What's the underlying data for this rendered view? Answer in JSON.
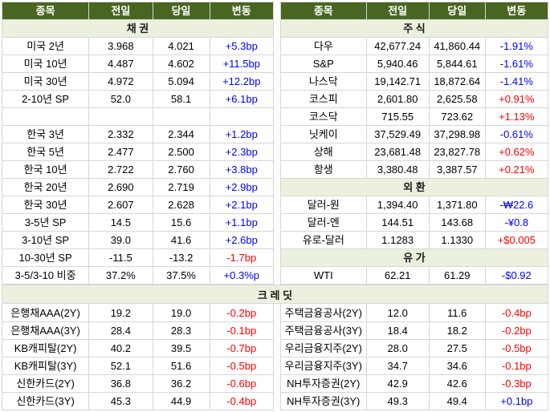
{
  "colors": {
    "header_bg": "#486621",
    "header_text": "#ffffff",
    "section_bg": "#ebf1de",
    "section_text": "#1a1a1a",
    "red": "#ff0000",
    "blue": "#0000ff",
    "grid": "#d6d6d6",
    "text": "#000000"
  },
  "chart_data": {
    "type": "table",
    "columns": [
      "종목",
      "전일",
      "당일",
      "변동"
    ],
    "left_rows": [
      {
        "t": "section",
        "label": "채 권"
      },
      {
        "t": "data",
        "name": "미국 2년",
        "prev": "3.968",
        "cur": "4.021",
        "chg": "+5.3bp",
        "c": "blue"
      },
      {
        "t": "data",
        "name": "미국 10년",
        "prev": "4.487",
        "cur": "4.602",
        "chg": "+11.5bp",
        "c": "blue"
      },
      {
        "t": "data",
        "name": "미국 30년",
        "prev": "4.972",
        "cur": "5.094",
        "chg": "+12.2bp",
        "c": "blue"
      },
      {
        "t": "data",
        "name": "2-10년 SP",
        "prev": "52.0",
        "cur": "58.1",
        "chg": "+6.1bp",
        "c": "blue"
      },
      {
        "t": "blank"
      },
      {
        "t": "data",
        "name": "한국 3년",
        "prev": "2.332",
        "cur": "2.344",
        "chg": "+1.2bp",
        "c": "blue"
      },
      {
        "t": "data",
        "name": "한국 5년",
        "prev": "2.477",
        "cur": "2.500",
        "chg": "+2.3bp",
        "c": "blue"
      },
      {
        "t": "data",
        "name": "한국 10년",
        "prev": "2.722",
        "cur": "2.760",
        "chg": "+3.8bp",
        "c": "blue"
      },
      {
        "t": "data",
        "name": "한국 20년",
        "prev": "2.690",
        "cur": "2.719",
        "chg": "+2.9bp",
        "c": "blue"
      },
      {
        "t": "data",
        "name": "한국 30년",
        "prev": "2.607",
        "cur": "2.628",
        "chg": "+2.1bp",
        "c": "blue"
      },
      {
        "t": "data",
        "name": "3-5년 SP",
        "prev": "14.5",
        "cur": "15.6",
        "chg": "+1.1bp",
        "c": "blue"
      },
      {
        "t": "data",
        "name": "3-10년 SP",
        "prev": "39.0",
        "cur": "41.6",
        "chg": "+2.6bp",
        "c": "blue"
      },
      {
        "t": "data",
        "name": "10-30년 SP",
        "prev": "-11.5",
        "cur": "-13.2",
        "chg": "-1.7bp",
        "c": "red"
      },
      {
        "t": "data",
        "name": "3-5/3-10 비중",
        "prev": "37.2%",
        "cur": "37.5%",
        "chg": "+0.3%p",
        "c": "blue"
      }
    ],
    "right_rows": [
      {
        "t": "section",
        "label": "주 식"
      },
      {
        "t": "data",
        "name": "다우",
        "prev": "42,677.24",
        "cur": "41,860.44",
        "chg": "-1.91%",
        "c": "blue"
      },
      {
        "t": "data",
        "name": "S&P",
        "prev": "5,940.46",
        "cur": "5,844.61",
        "chg": "-1.61%",
        "c": "blue"
      },
      {
        "t": "data",
        "name": "나스닥",
        "prev": "19,142.71",
        "cur": "18,872.64",
        "chg": "-1.41%",
        "c": "blue"
      },
      {
        "t": "data",
        "name": "코스피",
        "prev": "2,601.80",
        "cur": "2,625.58",
        "chg": "+0.91%",
        "c": "red"
      },
      {
        "t": "data",
        "name": "코스닥",
        "prev": "715.55",
        "cur": "723.62",
        "chg": "+1.13%",
        "c": "red"
      },
      {
        "t": "data",
        "name": "닛케이",
        "prev": "37,529.49",
        "cur": "37,298.98",
        "chg": "-0.61%",
        "c": "blue"
      },
      {
        "t": "data",
        "name": "상해",
        "prev": "23,681.48",
        "cur": "23,827.78",
        "chg": "+0.62%",
        "c": "red"
      },
      {
        "t": "data",
        "name": "항생",
        "prev": "3,380.48",
        "cur": "3,387.57",
        "chg": "+0.21%",
        "c": "red"
      },
      {
        "t": "section",
        "label": "외 환"
      },
      {
        "t": "data",
        "name": "달러-원",
        "prev": "1,394.40",
        "cur": "1,371.80",
        "chg": "-₩22.6",
        "c": "blue"
      },
      {
        "t": "data",
        "name": "달러-엔",
        "prev": "144.51",
        "cur": "143.68",
        "chg": "-¥0.8",
        "c": "blue"
      },
      {
        "t": "data",
        "name": "유로-달러",
        "prev": "1.1283",
        "cur": "1.1330",
        "chg": "+$0.005",
        "c": "red"
      },
      {
        "t": "section",
        "label": "유 가"
      },
      {
        "t": "data",
        "name": "WTI",
        "prev": "62.21",
        "cur": "61.29",
        "chg": "-$0.92",
        "c": "blue"
      }
    ],
    "credit_section": {
      "label": "크 레 딧",
      "left_rows": [
        {
          "t": "data",
          "name": "은행채AAA(2Y)",
          "prev": "19.2",
          "cur": "19.0",
          "chg": "-0.2bp",
          "c": "red"
        },
        {
          "t": "data",
          "name": "은행채AAA(3Y)",
          "prev": "28.4",
          "cur": "28.3",
          "chg": "-0.1bp",
          "c": "red"
        },
        {
          "t": "data",
          "name": "KB캐피탈(2Y)",
          "prev": "40.2",
          "cur": "39.5",
          "chg": "-0.7bp",
          "c": "red"
        },
        {
          "t": "data",
          "name": "KB캐피탈(3Y)",
          "prev": "52.1",
          "cur": "51.6",
          "chg": "-0.5bp",
          "c": "red"
        },
        {
          "t": "data",
          "name": "신한카드(2Y)",
          "prev": "36.8",
          "cur": "36.2",
          "chg": "-0.6bp",
          "c": "red"
        },
        {
          "t": "data",
          "name": "신한카드(3Y)",
          "prev": "45.3",
          "cur": "44.9",
          "chg": "-0.4bp",
          "c": "red"
        }
      ],
      "right_rows": [
        {
          "t": "data",
          "name": "주택금융공사(2Y)",
          "prev": "12.0",
          "cur": "11.6",
          "chg": "-0.4bp",
          "c": "red"
        },
        {
          "t": "data",
          "name": "주택금융공사(3Y)",
          "prev": "18.4",
          "cur": "18.2",
          "chg": "-0.2bp",
          "c": "red"
        },
        {
          "t": "data",
          "name": "우리금융지주(2Y)",
          "prev": "28.0",
          "cur": "27.5",
          "chg": "-0.5bp",
          "c": "red"
        },
        {
          "t": "data",
          "name": "우리금융지주(3Y)",
          "prev": "34.7",
          "cur": "34.6",
          "chg": "-0.1bp",
          "c": "red"
        },
        {
          "t": "data",
          "name": "NH투자증권(2Y)",
          "prev": "42.9",
          "cur": "42.6",
          "chg": "-0.3bp",
          "c": "red"
        },
        {
          "t": "data",
          "name": "NH투자증권(3Y)",
          "prev": "49.3",
          "cur": "49.4",
          "chg": "+0.1bp",
          "c": "blue"
        }
      ]
    }
  }
}
